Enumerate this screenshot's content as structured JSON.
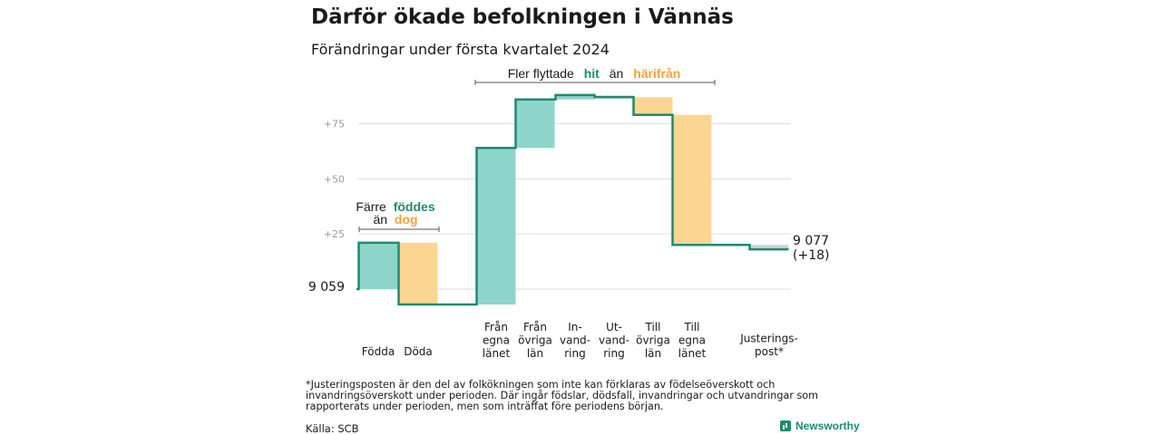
{
  "header": {
    "title": "Därför ökade befolkningen i Vännäs",
    "subtitle": "Förändringar under första kvartalet 2024"
  },
  "annotations": {
    "births": {
      "line1": "Färre",
      "word1": "föddes",
      "line2": "än",
      "word2": "dog"
    },
    "moves": {
      "prefix": "Fler flyttade",
      "word1": "hit",
      "mid": "än",
      "word2": "härifrån"
    }
  },
  "footnote": "*Justeringsposten är den del av folkökningen som inte kan förklaras av födelseöverskott och invandringsöverskott under perioden. Där ingår födslar, dödsfall, invandringar och utvandringar som rapporterats under perioden, men som inträffat före periodens början.",
  "source": "Källa: SCB",
  "brand": {
    "name": "Newsworthy",
    "icon": "newsworthy-logo-icon"
  },
  "colors": {
    "increase": "#8dd5cb",
    "decrease": "#fbd690",
    "line": "#1f8a70",
    "adjustment": "#cfd3d3",
    "grid": "#dddddd",
    "tick": "#9a9a9a",
    "accent_teal": "#1f8a70",
    "accent_orange": "#f2a23a"
  },
  "chart_data": {
    "type": "waterfall",
    "start_label": "9 059",
    "end_label": "9 077",
    "end_change": "(+18)",
    "y_ticks": [
      {
        "value": 25,
        "label": "+25"
      },
      {
        "value": 50,
        "label": "+50"
      },
      {
        "value": 75,
        "label": "+75"
      }
    ],
    "ylim": [
      -7,
      90
    ],
    "steps": [
      {
        "label_lines": [
          "Födda"
        ],
        "delta": 21,
        "kind": "increase"
      },
      {
        "label_lines": [
          "Döda"
        ],
        "delta": -28,
        "kind": "decrease"
      },
      {
        "label_lines": [
          "Från",
          "egna",
          "länet"
        ],
        "delta": 71,
        "kind": "increase"
      },
      {
        "label_lines": [
          "Från",
          "övriga",
          "län"
        ],
        "delta": 22,
        "kind": "increase"
      },
      {
        "label_lines": [
          "In-",
          "vand-",
          "ring"
        ],
        "delta": 2,
        "kind": "increase"
      },
      {
        "label_lines": [
          "Ut-",
          "vand-",
          "ring"
        ],
        "delta": -1,
        "kind": "decrease"
      },
      {
        "label_lines": [
          "Till",
          "övriga",
          "län"
        ],
        "delta": -8,
        "kind": "decrease"
      },
      {
        "label_lines": [
          "Till",
          "egna",
          "länet"
        ],
        "delta": -59,
        "kind": "decrease"
      },
      {
        "label_lines": [
          "Justerings-",
          "post*"
        ],
        "delta": -2,
        "kind": "adjustment"
      }
    ]
  }
}
